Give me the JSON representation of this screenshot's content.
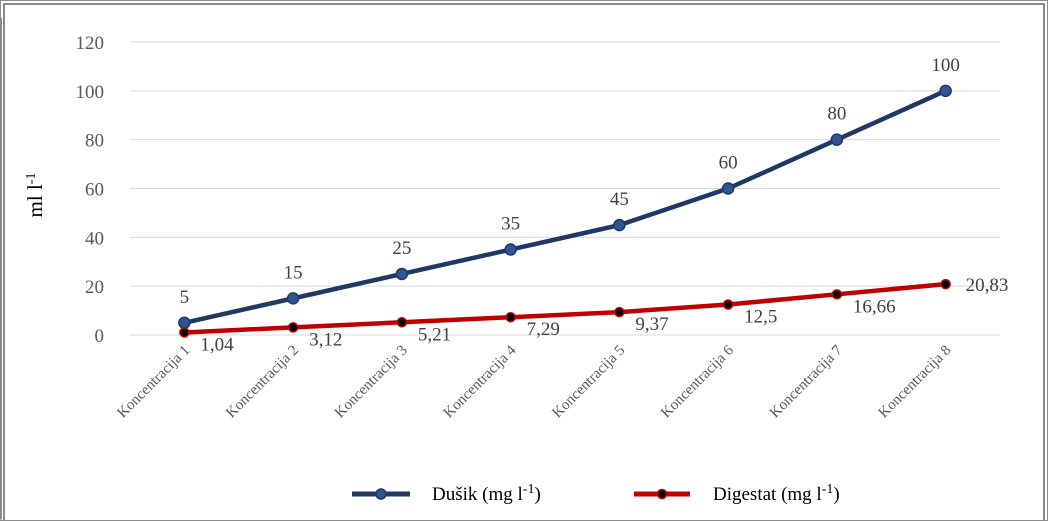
{
  "chart_data": {
    "type": "line",
    "ylabel": "ml l",
    "ylabel_sup": "-1",
    "ylim": [
      0,
      120
    ],
    "yticks": [
      0,
      20,
      40,
      60,
      80,
      100,
      120
    ],
    "grid": true,
    "legend_position": "bottom",
    "categories": [
      "Koncentracija 1",
      "Koncentracija 2",
      "Koncentracija 3",
      "Koncentracija 4",
      "Koncentracija 5",
      "Koncentracija 6",
      "Koncentracija 7",
      "Koncentracija 8"
    ],
    "series": [
      {
        "name": "Dušik (mg l",
        "name_sup": "-1",
        "name_end": ")",
        "color": "#203864",
        "marker_color": "#2f5597",
        "values": [
          5,
          15,
          25,
          35,
          45,
          60,
          80,
          100
        ],
        "labels": [
          "5",
          "15",
          "25",
          "35",
          "45",
          "60",
          "80",
          "100"
        ]
      },
      {
        "name": "Digestat (mg l",
        "name_sup": "-1",
        "name_end": ")",
        "color": "#c00000",
        "marker_color": "#000000",
        "values": [
          1.04,
          3.12,
          5.21,
          7.29,
          9.37,
          12.5,
          16.66,
          20.83
        ],
        "labels": [
          "1,04",
          "3,12",
          "5,21",
          "7,29",
          "9,37",
          "12,5",
          "16,66",
          "20,83"
        ]
      }
    ]
  }
}
